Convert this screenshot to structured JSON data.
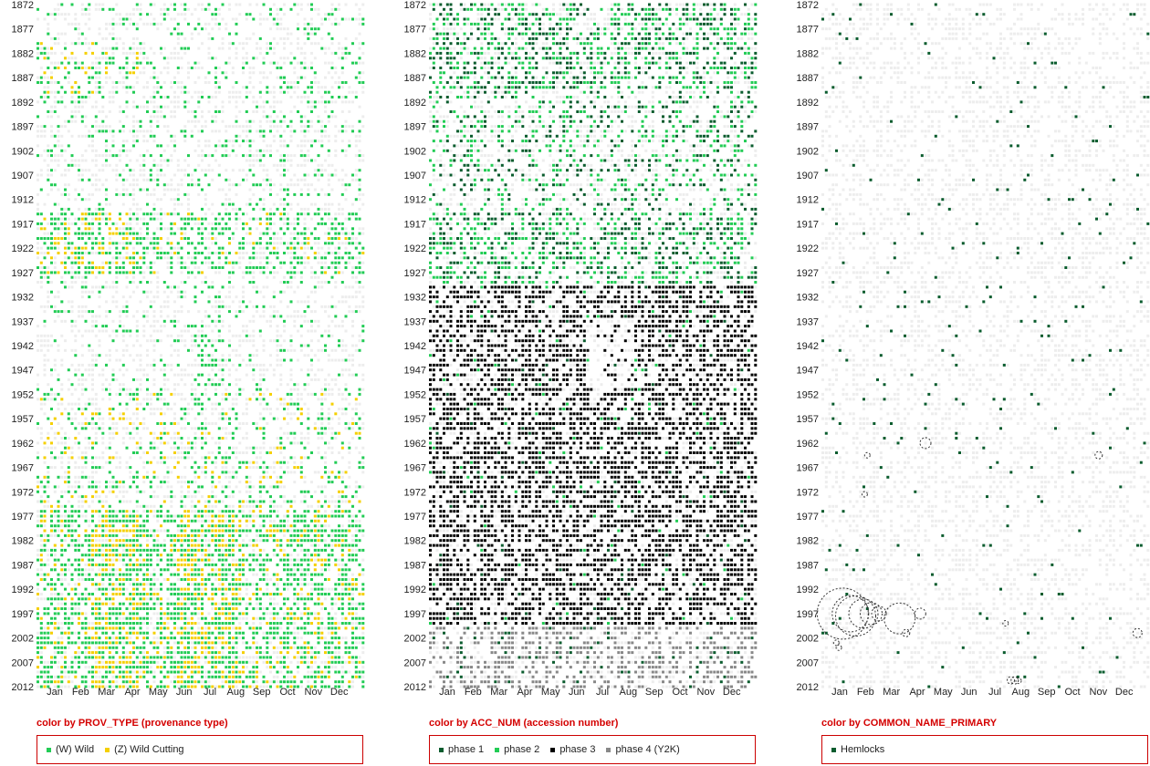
{
  "chart_data": [
    {
      "type": "scatter",
      "years": [
        1872,
        1877,
        1882,
        1887,
        1892,
        1897,
        1902,
        1907,
        1912,
        1917,
        1922,
        1927,
        1932,
        1937,
        1942,
        1947,
        1952,
        1957,
        1962,
        1967,
        1972,
        1977,
        1982,
        1987,
        1992,
        1997,
        2002,
        2007,
        2012
      ],
      "months": [
        "Jan",
        "Feb",
        "Mar",
        "Apr",
        "May",
        "Jun",
        "Jul",
        "Aug",
        "Sep",
        "Oct",
        "Nov",
        "Dec"
      ],
      "ylim": [
        1872,
        2012
      ],
      "caption": "color by PROV_TYPE (provenance type)",
      "legend": [
        {
          "label": "(W) Wild",
          "color": "#22cc55"
        },
        {
          "label": "(Z) Wild Cutting",
          "color": "#f5d000"
        }
      ],
      "background_color": "#d8d8d8"
    },
    {
      "type": "scatter",
      "years": [
        1872,
        1877,
        1882,
        1887,
        1892,
        1897,
        1902,
        1907,
        1912,
        1917,
        1922,
        1927,
        1932,
        1937,
        1942,
        1947,
        1952,
        1957,
        1962,
        1967,
        1972,
        1977,
        1982,
        1987,
        1992,
        1997,
        2002,
        2007,
        2012
      ],
      "months": [
        "Jan",
        "Feb",
        "Mar",
        "Apr",
        "May",
        "Jun",
        "Jul",
        "Aug",
        "Sep",
        "Oct",
        "Nov",
        "Dec"
      ],
      "ylim": [
        1872,
        2012
      ],
      "caption": "color by ACC_NUM (accession number)",
      "legend": [
        {
          "label": "phase 1",
          "color": "#0a5c2e"
        },
        {
          "label": "phase 2",
          "color": "#22cc55"
        },
        {
          "label": "phase 3",
          "color": "#000000"
        },
        {
          "label": "phase 4 (Y2K)",
          "color": "#888888"
        }
      ],
      "background_color": "#d8d8d8"
    },
    {
      "type": "scatter",
      "years": [
        1872,
        1877,
        1882,
        1887,
        1892,
        1897,
        1902,
        1907,
        1912,
        1917,
        1922,
        1927,
        1932,
        1937,
        1942,
        1947,
        1952,
        1957,
        1962,
        1967,
        1972,
        1977,
        1982,
        1987,
        1992,
        1997,
        2002,
        2007,
        2012
      ],
      "months": [
        "Jan",
        "Feb",
        "Mar",
        "Apr",
        "May",
        "Jun",
        "Jul",
        "Aug",
        "Sep",
        "Oct",
        "Nov",
        "Dec"
      ],
      "ylim": [
        1872,
        2012
      ],
      "caption": "color by COMMON_NAME_PRIMARY",
      "legend": [
        {
          "label": "Hemlocks",
          "color": "#0a5c2e"
        }
      ],
      "background_color": "#d8d8d8",
      "highlight_circles": [
        {
          "month": 0.4,
          "year": 1997,
          "r": 28
        },
        {
          "month": 0.7,
          "year": 1997,
          "r": 20
        },
        {
          "month": 0.9,
          "year": 1997.5,
          "r": 22
        },
        {
          "month": 1.2,
          "year": 1997,
          "r": 16
        },
        {
          "month": 1.5,
          "year": 1997,
          "r": 12
        },
        {
          "month": 1.8,
          "year": 1997,
          "r": 8
        },
        {
          "month": 2.6,
          "year": 1998,
          "r": 17
        },
        {
          "month": 3.4,
          "year": 1997,
          "r": 6
        },
        {
          "month": 2.85,
          "year": 2001,
          "r": 4
        },
        {
          "month": 0.15,
          "year": 2003,
          "r": 3
        },
        {
          "month": 0.25,
          "year": 2004,
          "r": 3
        },
        {
          "month": 1.35,
          "year": 1964.5,
          "r": 3
        },
        {
          "month": 1.25,
          "year": 1972.5,
          "r": 3
        },
        {
          "month": 3.6,
          "year": 1962,
          "r": 6
        },
        {
          "month": 10.3,
          "year": 1964.5,
          "r": 4
        },
        {
          "month": 6.7,
          "year": 1999,
          "r": 3
        },
        {
          "month": 11.8,
          "year": 2001,
          "r": 5
        },
        {
          "month": 6.9,
          "year": 2010.7,
          "r": 4
        },
        {
          "month": 7.05,
          "year": 2010.7,
          "r": 4
        },
        {
          "month": 7.2,
          "year": 2010.8,
          "r": 3
        }
      ]
    }
  ]
}
